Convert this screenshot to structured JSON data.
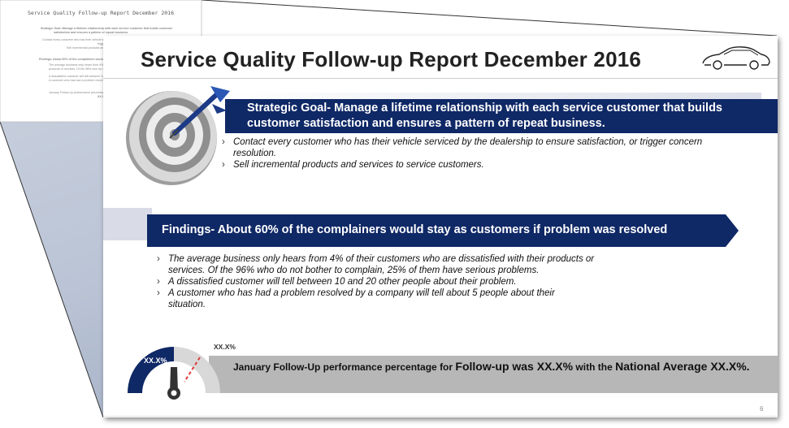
{
  "back_page": {
    "title": "Service Quality Follow-up Report December 2016",
    "lines": [
      "Strategic Goal: Manage a lifetime relationship with each service customer that builds customer",
      "satisfaction and ensures a pattern of repeat business.",
      "Contact every customer who has their vehicle serviced by the dealership to ensure satisfaction",
      "trigger concern resolution.",
      "Sell incremental products and services to service customers.",
      "Findings: About 60% of the complainers would stay as customers if problem was resolved",
      "The average business only hears from 4% of their customers who are dissatisfied with their",
      "products or services. Of the 96% who do not bother to complain, 25% of them have",
      "A dissatisfied customer will tell between 10 and 20 other people",
      "A customer who has had a problem resolved by a company will tell",
      "January Follow-Up performance percentage for Follow-up was",
      "XX.X%"
    ]
  },
  "slide": {
    "title": "Service Quality Follow-up Report December 2016",
    "page_number": "6"
  },
  "strategic_goal": {
    "heading": "Strategic Goal- Manage a lifetime relationship with each service customer that builds customer satisfaction and ensures a pattern of repeat business.",
    "bullets": [
      "Contact every customer who has their vehicle serviced by the dealership to ensure satisfaction, or trigger concern resolution.",
      "Sell incremental products and services to service customers."
    ]
  },
  "findings": {
    "heading": "Findings- About 60% of the complainers would stay as customers if problem was resolved",
    "bullets": [
      "The average business only hears from 4% of their customers who are dissatisfied with their products or services. Of the 96% who do not bother to complain, 25% of them have serious problems.",
      "A dissatisfied customer will tell between 10 and 20 other people about their problem.",
      "A customer who has had a problem resolved by a company will tell about 5 people about their situation."
    ]
  },
  "performance": {
    "gauge_value_label": "XX.X%",
    "gauge_target_label": "XX.X%",
    "text_part1": "January Follow-Up performance percentage for ",
    "text_part2": "Follow-up was XX.X%",
    "text_part3": " with the ",
    "text_part4": "National Average XX.X%."
  },
  "colors": {
    "navy": "#0f2866",
    "band_gray": "#b7b7b7",
    "gauge_gray": "#d8d8d8",
    "needle": "#333333",
    "target_line": "#e23b3b"
  },
  "icons": {
    "car": "car-outline-icon",
    "target": "dartboard-target-icon",
    "gauge": "speedometer-gauge-icon",
    "bullet": "chevron-right-icon"
  }
}
